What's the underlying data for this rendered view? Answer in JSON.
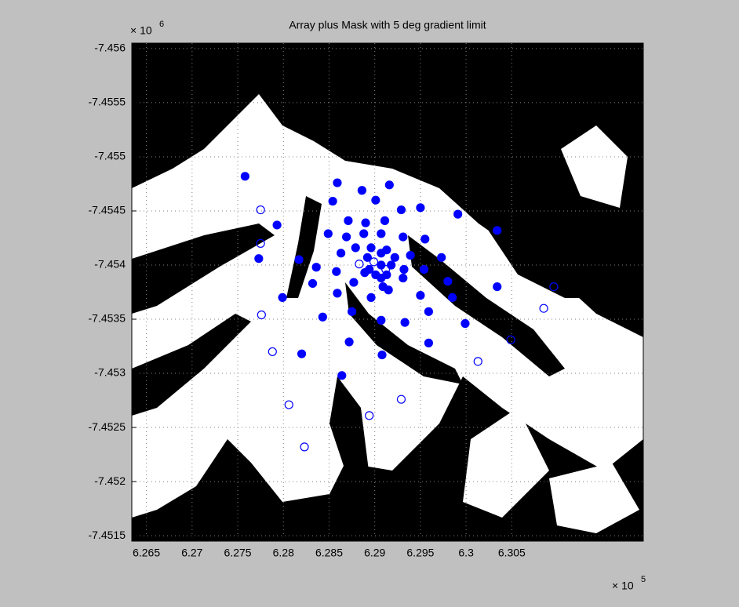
{
  "chart_data": {
    "type": "scatter",
    "title": "Array plus Mask with 5 deg gradient limit",
    "x_scale_label": "× 10",
    "x_scale_exponent": 5,
    "y_scale_label": "× 10",
    "y_scale_exponent": 6,
    "xlim": [
      6.2634,
      6.3194
    ],
    "ylim": [
      -7.45605,
      -7.45145
    ],
    "y_reversed": true,
    "xticks": [
      6.265,
      6.27,
      6.275,
      6.28,
      6.285,
      6.29,
      6.295,
      6.3,
      6.305
    ],
    "yticks": [
      -7.456,
      -7.4555,
      -7.455,
      -7.4545,
      -7.454,
      -7.4535,
      -7.453,
      -7.4525,
      -7.452,
      -7.4515
    ],
    "grid": true,
    "series": [
      {
        "color": "#0000ff",
        "marker": "filled",
        "x": [
          6.2758,
          6.2859,
          6.2886,
          6.2916,
          6.2854,
          6.2901,
          6.2929,
          6.295,
          6.2991,
          6.3034,
          6.2793,
          6.2871,
          6.289,
          6.2911,
          6.2849,
          6.2869,
          6.2888,
          6.2907,
          6.2931,
          6.2955,
          6.2773,
          6.2817,
          6.2863,
          6.2879,
          6.2896,
          6.2913,
          6.2939,
          6.2973,
          6.2836,
          6.2858,
          6.2932,
          6.2954,
          6.298,
          6.3034,
          6.2832,
          6.2877,
          6.2909,
          6.2931,
          6.2799,
          6.2859,
          6.2896,
          6.2915,
          6.295,
          6.2985,
          6.2875,
          6.2843,
          6.2907,
          6.2959,
          6.2999,
          6.2933,
          6.2872,
          6.282,
          6.2908,
          6.2959,
          6.2864,
          6.2892,
          6.2907,
          6.2918,
          6.2913,
          6.2901,
          6.2894,
          6.2907,
          6.2907,
          6.2922,
          6.2889
        ],
        "values": [
          -7.45482,
          -7.45476,
          -7.45469,
          -7.45474,
          -7.45459,
          -7.4546,
          -7.45451,
          -7.45453,
          -7.45447,
          -7.45432,
          -7.45437,
          -7.45441,
          -7.45439,
          -7.45441,
          -7.45429,
          -7.45426,
          -7.45429,
          -7.45429,
          -7.45426,
          -7.45424,
          -7.45406,
          -7.45405,
          -7.45411,
          -7.45416,
          -7.45416,
          -7.45414,
          -7.45409,
          -7.45407,
          -7.45398,
          -7.45394,
          -7.45396,
          -7.45396,
          -7.45385,
          -7.4538,
          -7.45383,
          -7.45384,
          -7.4538,
          -7.45388,
          -7.4537,
          -7.45374,
          -7.4537,
          -7.45377,
          -7.45372,
          -7.4537,
          -7.45357,
          -7.45352,
          -7.45349,
          -7.45357,
          -7.45346,
          -7.45347,
          -7.45329,
          -7.45318,
          -7.45317,
          -7.45328,
          -7.45298,
          -7.45407,
          -7.454,
          -7.454,
          -7.45391,
          -7.45391,
          -7.45396,
          -7.45411,
          -7.45388,
          -7.45407,
          -7.45393
        ]
      },
      {
        "color": "#0000ff",
        "marker": "open",
        "x": [
          6.2775,
          6.2775,
          6.2776,
          6.2788,
          6.2806,
          6.2823,
          6.2894,
          6.2929,
          6.3013,
          6.3049,
          6.3085,
          6.3096,
          6.2899,
          6.2912,
          6.2883
        ],
        "values": [
          -7.45451,
          -7.4542,
          -7.45354,
          -7.4532,
          -7.45271,
          -7.45232,
          -7.45261,
          -7.45276,
          -7.45311,
          -7.45331,
          -7.4536,
          -7.4538,
          -7.45403,
          -7.45396,
          -7.45401
        ]
      }
    ]
  }
}
